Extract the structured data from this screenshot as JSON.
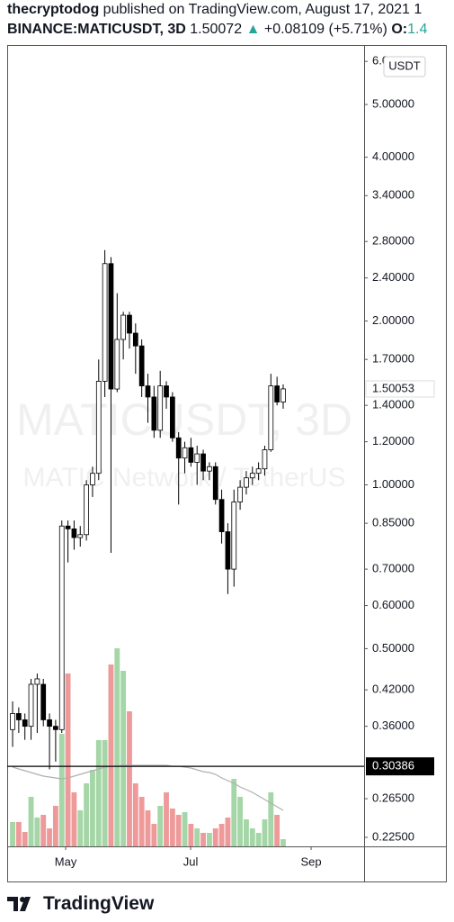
{
  "header": {
    "publisher": "thecryptodog",
    "published_text": "published on TradingView.com, August 17, 2021 1",
    "symbol": "BINANCE:MATICUSDT, 3D",
    "price": "1.50072",
    "change": "+0.08109 (+5.71%)",
    "open_label": "O:",
    "open_value": "1.4"
  },
  "footer": {
    "brand": "TradingView"
  },
  "chart_data": {
    "type": "candlestick",
    "watermark": "MATICUSDT, 3D",
    "watermark_sub": "MATIC Network / TetherUS",
    "currency_badge": "USDT",
    "log_scale": true,
    "grid": false,
    "up_color": "#ffffff",
    "down_color": "#000000",
    "wick_color": "#000000",
    "volume_up_color": "#a5d6a7",
    "volume_down_color": "#ef9a9a",
    "volume_ma_color": "#b0b0b0",
    "categories": [
      null,
      null,
      null,
      null,
      null,
      null,
      null,
      null,
      null,
      null,
      null,
      null,
      null,
      null,
      null,
      null,
      null,
      null,
      null,
      null,
      null,
      null,
      null,
      null,
      null,
      null,
      null,
      null,
      null,
      null,
      null,
      null,
      null,
      null,
      null,
      null,
      null,
      null,
      null,
      null,
      null,
      null,
      null,
      null,
      null
    ],
    "xlim": [
      -0.88,
      57.16
    ],
    "xticks": [
      {
        "value": 8.63,
        "label": "May"
      },
      {
        "value": 28.95,
        "label": "Jul"
      },
      {
        "value": 48.54,
        "label": "Sep"
      }
    ],
    "open": [
      0.355,
      0.38,
      0.37,
      0.36,
      0.43,
      0.43,
      0.37,
      0.36,
      0.355,
      0.84,
      0.83,
      0.8,
      0.81,
      1.0,
      1.05,
      1.55,
      2.55,
      1.5,
      1.85,
      2.05,
      1.9,
      1.8,
      1.52,
      1.45,
      1.26,
      1.52,
      1.45,
      1.22,
      1.12,
      1.17,
      1.1,
      1.14,
      1.06,
      1.08,
      0.94,
      0.82,
      0.7,
      0.93,
      0.99,
      1.03,
      1.05,
      1.07,
      1.16,
      1.52,
      1.41963
    ],
    "high": [
      0.4,
      0.39,
      0.38,
      0.44,
      0.45,
      0.44,
      0.38,
      0.37,
      0.86,
      0.86,
      0.86,
      0.84,
      1.02,
      1.08,
      1.7,
      2.7,
      2.62,
      2.25,
      2.08,
      2.08,
      1.98,
      1.85,
      1.6,
      1.52,
      1.62,
      1.55,
      1.48,
      1.25,
      1.2,
      1.22,
      1.18,
      1.16,
      1.1,
      1.1,
      0.98,
      0.85,
      0.98,
      1.02,
      1.06,
      1.08,
      1.1,
      1.18,
      1.6,
      1.58,
      1.53
    ],
    "low": [
      0.33,
      0.35,
      0.34,
      0.34,
      0.35,
      0.36,
      0.3,
      0.31,
      0.35,
      0.72,
      0.76,
      0.77,
      0.79,
      0.95,
      1.02,
      1.45,
      0.75,
      1.48,
      1.7,
      1.78,
      1.6,
      1.45,
      1.3,
      1.22,
      1.22,
      1.38,
      1.2,
      0.92,
      1.05,
      1.08,
      1.0,
      1.02,
      1.02,
      0.92,
      0.78,
      0.63,
      0.65,
      0.9,
      0.96,
      1.0,
      1.02,
      1.04,
      1.15,
      1.4,
      1.38
    ],
    "close": [
      0.38,
      0.37,
      0.36,
      0.43,
      0.44,
      0.37,
      0.36,
      0.355,
      0.84,
      0.83,
      0.8,
      0.81,
      1.0,
      1.05,
      1.55,
      2.55,
      1.5,
      1.85,
      2.05,
      1.9,
      1.8,
      1.52,
      1.45,
      1.26,
      1.52,
      1.45,
      1.22,
      1.12,
      1.17,
      1.1,
      1.14,
      1.06,
      1.08,
      0.94,
      0.82,
      0.7,
      0.93,
      0.99,
      1.03,
      1.05,
      1.07,
      1.16,
      1.52,
      1.41963,
      1.50072
    ],
    "volume": [
      27,
      27,
      16,
      55,
      32,
      35,
      20,
      45,
      125,
      192,
      60,
      40,
      70,
      85,
      118,
      118,
      202,
      220,
      195,
      150,
      70,
      55,
      40,
      25,
      45,
      60,
      42,
      35,
      38,
      25,
      20,
      15,
      15,
      20,
      25,
      32,
      75,
      55,
      30,
      20,
      15,
      30,
      60,
      35,
      8
    ],
    "volume_ma": [
      88,
      86,
      84,
      82,
      80,
      78,
      77,
      76,
      75,
      76,
      78,
      80,
      82,
      84,
      86,
      88,
      89,
      89,
      90,
      90,
      90,
      90,
      90,
      90,
      90,
      90,
      89,
      89,
      88,
      87,
      85,
      83,
      82,
      80,
      76,
      73,
      70,
      66,
      63,
      60,
      56,
      52,
      48,
      44,
      40
    ],
    "vlim": [
      0,
      250
    ],
    "ylim": [
      0.2166,
      6.43
    ],
    "yticks": [
      {
        "value": 6,
        "label": "6.00000"
      },
      {
        "value": 5,
        "label": "5.00000"
      },
      {
        "value": 4,
        "label": "4.00000"
      },
      {
        "value": 3.4,
        "label": "3.40000"
      },
      {
        "value": 2.8,
        "label": "2.80000"
      },
      {
        "value": 2.4,
        "label": "2.40000"
      },
      {
        "value": 2,
        "label": "2.00000"
      },
      {
        "value": 1.7,
        "label": "1.70000"
      },
      {
        "value": 1.4,
        "label": "1.40000"
      },
      {
        "value": 1.2,
        "label": "1.20000"
      },
      {
        "value": 1,
        "label": "1.00000"
      },
      {
        "value": 0.85,
        "label": "0.85000"
      },
      {
        "value": 0.7,
        "label": "0.70000"
      },
      {
        "value": 0.6,
        "label": "0.60000"
      },
      {
        "value": 0.5,
        "label": "0.50000"
      },
      {
        "value": 0.42,
        "label": "0.42000"
      },
      {
        "value": 0.36,
        "label": "0.36000"
      },
      {
        "value": 0.265,
        "label": "0.26500"
      },
      {
        "value": 0.225,
        "label": "0.22500"
      }
    ],
    "last_price": 1.50053,
    "horizontal_line": 0.30386
  }
}
